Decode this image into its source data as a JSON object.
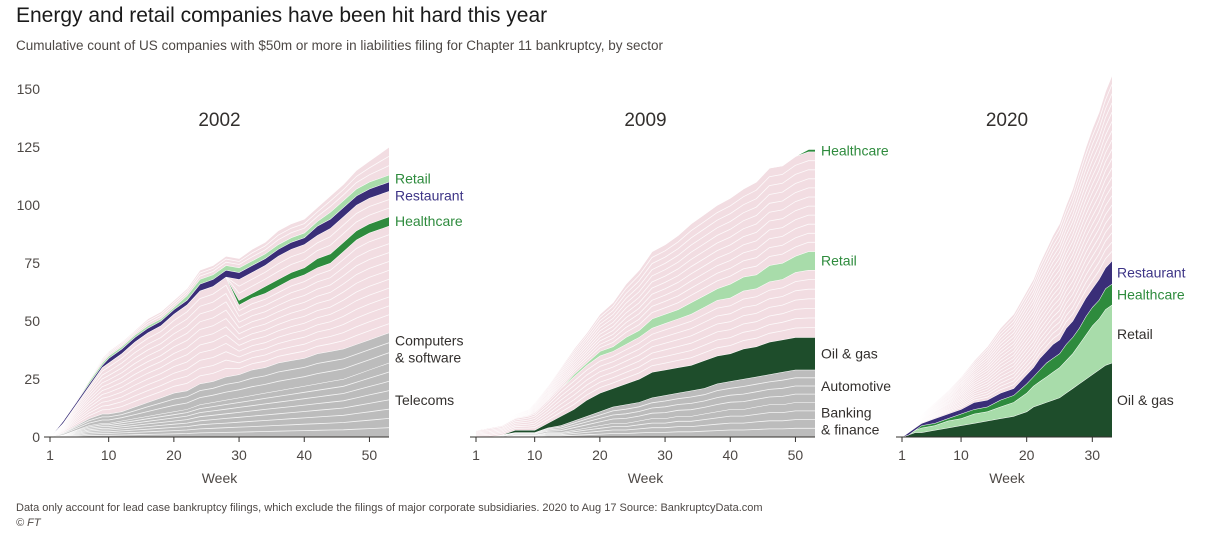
{
  "title": "Energy and retail companies have been hit hard this year",
  "subtitle": "Cumulative count of US companies with $50m or more in liabilities filing for Chapter 11 bankruptcy, by sector",
  "footnote": "Data only account for lead case bankruptcy filings, which exclude the filings of major corporate subsidiaries. 2020 to Aug 17   Source: BankruptcyData.com",
  "credit": "© FT",
  "colors": {
    "other": "#f2dde2",
    "other_lines": "#ffffff",
    "gray": "#bcbcbc",
    "dark_green": "#1e4d2b",
    "green": "#2e8b3d",
    "light_green": "#a8dcaa",
    "purple": "#3a2e78",
    "purple_label": "#3d3486",
    "green_label": "#2e8b3d",
    "label": "#33302e"
  },
  "chart_data": [
    {
      "type": "area",
      "title": "2002",
      "xlabel": "Week",
      "ylabel": "",
      "xlim": [
        1,
        53
      ],
      "ylim": [
        0,
        150
      ],
      "xticks": [
        1,
        10,
        20,
        30,
        40,
        50
      ],
      "yticks": [
        0,
        25,
        50,
        75,
        100,
        125,
        150
      ],
      "x": [
        1,
        3,
        5,
        7,
        9,
        10,
        12,
        14,
        16,
        18,
        20,
        22,
        24,
        26,
        28,
        30,
        32,
        34,
        36,
        38,
        40,
        42,
        44,
        46,
        48,
        50,
        52,
        53
      ],
      "layers": [
        {
          "name": "Telecoms",
          "values": [
            0,
            1,
            3,
            5,
            6,
            6,
            7,
            8,
            9,
            10,
            11,
            12,
            14,
            15,
            16,
            17,
            18,
            19,
            20,
            21,
            22,
            23,
            24,
            25,
            27,
            29,
            31,
            32
          ],
          "color": "gray",
          "label_color": "label"
        },
        {
          "name": "Computers\n& software",
          "values": [
            0,
            1,
            2,
            3,
            4,
            4,
            4,
            5,
            6,
            7,
            8,
            8,
            9,
            9,
            10,
            10,
            11,
            11,
            12,
            12,
            12,
            13,
            13,
            13,
            13,
            13,
            13,
            13
          ],
          "color": "gray",
          "label_color": "label"
        },
        {
          "name": "Other",
          "values": [
            0,
            4,
            9,
            14,
            20,
            22,
            25,
            28,
            30,
            31,
            34,
            37,
            40,
            41,
            43,
            30,
            31,
            32,
            33,
            35,
            36,
            37,
            38,
            42,
            45,
            46,
            46,
            46
          ],
          "color": "other",
          "label_color": "label"
        },
        {
          "name": "Healthcare",
          "values": [
            0,
            0,
            0,
            0,
            0,
            0,
            0,
            0,
            0,
            0,
            0,
            0,
            0,
            0,
            0,
            2,
            2,
            3,
            3,
            3,
            3,
            4,
            4,
            4,
            4,
            4,
            4,
            4
          ],
          "color": "green",
          "label_color": "green_label"
        },
        {
          "name": "Other",
          "values": [
            0,
            0,
            0,
            0,
            0,
            0,
            0,
            0,
            0,
            0,
            0,
            0,
            0,
            0,
            0,
            9,
            9,
            9,
            10,
            10,
            10,
            10,
            11,
            11,
            11,
            11,
            11,
            11
          ],
          "color": "other",
          "label_color": "label"
        },
        {
          "name": "Restaurant",
          "values": [
            0,
            1,
            1,
            1,
            1,
            2,
            2,
            2,
            2,
            2,
            2,
            2,
            3,
            3,
            3,
            3,
            3,
            3,
            3,
            3,
            3,
            4,
            4,
            4,
            4,
            4,
            4,
            4
          ],
          "color": "purple",
          "label_color": "purple_label"
        },
        {
          "name": "Retail",
          "values": [
            0,
            0,
            0,
            1,
            1,
            1,
            1,
            1,
            1,
            1,
            1,
            2,
            2,
            2,
            2,
            2,
            2,
            2,
            2,
            2,
            2,
            2,
            3,
            3,
            3,
            3,
            3,
            3
          ],
          "color": "light_green",
          "label_color": "green_label"
        },
        {
          "name": "Other",
          "values": [
            0,
            0,
            1,
            1,
            2,
            2,
            2,
            2,
            3,
            3,
            3,
            3,
            4,
            4,
            4,
            4,
            5,
            5,
            6,
            6,
            6,
            6,
            7,
            7,
            8,
            9,
            11,
            12
          ],
          "color": "other",
          "label_color": "label"
        }
      ],
      "labels": [
        "Retail",
        "Restaurant",
        "Healthcare",
        "Computers\n& software",
        "Telecoms"
      ]
    },
    {
      "type": "area",
      "title": "2009",
      "xlabel": "Week",
      "ylabel": "",
      "xlim": [
        1,
        53
      ],
      "ylim": [
        0,
        150
      ],
      "xticks": [
        1,
        10,
        20,
        30,
        40,
        50
      ],
      "yticks": [
        0,
        25,
        50,
        75,
        100,
        125,
        150
      ],
      "x": [
        1,
        3,
        5,
        7,
        9,
        10,
        12,
        14,
        16,
        18,
        20,
        22,
        24,
        26,
        28,
        30,
        32,
        34,
        36,
        38,
        40,
        42,
        44,
        46,
        48,
        50,
        52,
        53
      ],
      "layers": [
        {
          "name": "Banking\n& finance",
          "values": [
            0,
            0,
            0,
            1,
            1,
            1,
            2,
            2,
            3,
            4,
            5,
            6,
            6,
            7,
            8,
            8,
            9,
            9,
            10,
            11,
            12,
            12,
            13,
            14,
            14,
            15,
            15,
            15
          ],
          "color": "gray",
          "label_color": "label"
        },
        {
          "name": "Automotive",
          "values": [
            0,
            0,
            1,
            1,
            1,
            1,
            2,
            3,
            4,
            5,
            6,
            7,
            8,
            8,
            9,
            10,
            10,
            11,
            11,
            12,
            12,
            13,
            13,
            13,
            14,
            14,
            14,
            14
          ],
          "color": "gray",
          "label_color": "label"
        },
        {
          "name": "Oil & gas",
          "values": [
            0,
            0,
            0,
            1,
            1,
            1,
            2,
            4,
            5,
            7,
            8,
            8,
            9,
            10,
            11,
            11,
            11,
            11,
            12,
            12,
            12,
            13,
            13,
            14,
            14,
            14,
            14,
            14
          ],
          "color": "dark_green",
          "label_color": "label"
        },
        {
          "name": "Other",
          "values": [
            3,
            4,
            4,
            5,
            6,
            7,
            9,
            12,
            14,
            15,
            16,
            16,
            17,
            18,
            19,
            20,
            21,
            22,
            23,
            24,
            24,
            25,
            25,
            26,
            26,
            28,
            29,
            29
          ],
          "color": "other",
          "label_color": "label"
        },
        {
          "name": "Retail",
          "values": [
            0,
            0,
            0,
            0,
            0,
            0,
            0,
            0,
            1,
            1,
            2,
            2,
            3,
            3,
            4,
            4,
            4,
            5,
            5,
            5,
            6,
            6,
            6,
            7,
            7,
            7,
            8,
            8
          ],
          "color": "light_green",
          "label_color": "green_label"
        },
        {
          "name": "Other",
          "values": [
            0,
            0,
            1,
            2,
            3,
            5,
            7,
            9,
            11,
            13,
            16,
            19,
            23,
            26,
            29,
            30,
            32,
            34,
            35,
            36,
            37,
            38,
            40,
            42,
            42,
            43,
            43,
            43
          ],
          "color": "other",
          "label_color": "label"
        },
        {
          "name": "Healthcare",
          "values": [
            0,
            0,
            0,
            0,
            0,
            0,
            0,
            0,
            0,
            0,
            0,
            0,
            0,
            0,
            0,
            0,
            0,
            0,
            0,
            0,
            0,
            0,
            0,
            0,
            0,
            0,
            1,
            1
          ],
          "color": "green",
          "label_color": "green_label"
        }
      ],
      "labels": [
        "Healthcare",
        "Retail",
        "Oil & gas",
        "Automotive",
        "Banking\n& finance"
      ]
    },
    {
      "type": "area",
      "title": "2020",
      "xlabel": "Week",
      "ylabel": "",
      "xlim": [
        1,
        33
      ],
      "ylim": [
        0,
        150
      ],
      "xticks": [
        1,
        10,
        20,
        30
      ],
      "yticks": [
        0,
        25,
        50,
        75,
        100,
        125,
        150
      ],
      "x": [
        1,
        2,
        3,
        4,
        6,
        8,
        10,
        12,
        14,
        16,
        18,
        20,
        21,
        22,
        23,
        24,
        25,
        26,
        27,
        28,
        29,
        30,
        31,
        32,
        33
      ],
      "layers": [
        {
          "name": "Oil & gas",
          "values": [
            0,
            1,
            2,
            2,
            3,
            4,
            5,
            6,
            7,
            8,
            9,
            11,
            13,
            14,
            15,
            16,
            17,
            19,
            21,
            23,
            25,
            27,
            29,
            31,
            32
          ],
          "color": "dark_green",
          "label_color": "label"
        },
        {
          "name": "Retail",
          "values": [
            0,
            0,
            1,
            2,
            2,
            3,
            3,
            4,
            4,
            5,
            6,
            8,
            9,
            10,
            11,
            12,
            13,
            14,
            15,
            17,
            19,
            21,
            22,
            24,
            25
          ],
          "color": "light_green",
          "label_color": "label"
        },
        {
          "name": "Healthcare",
          "values": [
            0,
            0,
            0,
            1,
            1,
            1,
            2,
            2,
            2,
            3,
            3,
            4,
            4,
            5,
            6,
            6,
            6,
            7,
            7,
            7,
            8,
            8,
            8,
            9,
            9
          ],
          "color": "green",
          "label_color": "green_label"
        },
        {
          "name": "Restaurant",
          "values": [
            0,
            1,
            1,
            1,
            2,
            2,
            2,
            3,
            3,
            3,
            3,
            4,
            4,
            5,
            5,
            6,
            6,
            7,
            7,
            8,
            8,
            8,
            9,
            9,
            10
          ],
          "color": "purple",
          "label_color": "purple_label"
        },
        {
          "name": "Other",
          "values": [
            0,
            1,
            3,
            4,
            7,
            10,
            14,
            18,
            23,
            28,
            32,
            36,
            38,
            41,
            44,
            47,
            50,
            53,
            57,
            61,
            65,
            69,
            72,
            76,
            80
          ],
          "color": "other",
          "label_color": "label"
        }
      ],
      "labels": [
        "Restaurant",
        "Healthcare",
        "Retail",
        "Oil & gas"
      ]
    }
  ]
}
